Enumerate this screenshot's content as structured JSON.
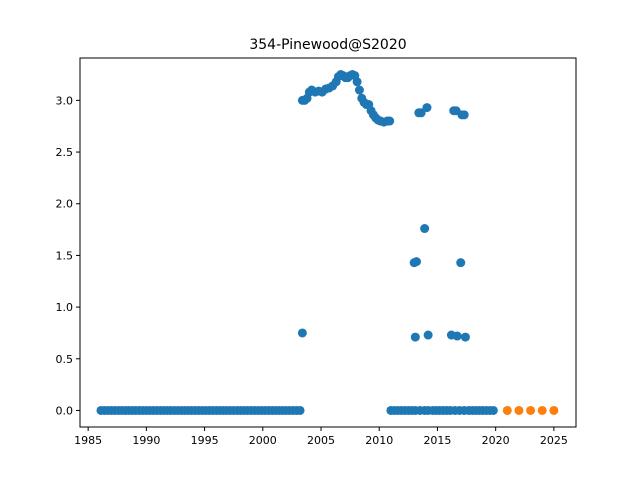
{
  "chart_data": {
    "type": "scatter",
    "title": "354-Pinewood@S2020",
    "xlabel": "",
    "ylabel": "",
    "xlim": [
      1984.3,
      2026.9
    ],
    "ylim": [
      -0.16,
      3.41
    ],
    "xticks": [
      1985,
      1990,
      1995,
      2000,
      2005,
      2010,
      2015,
      2020,
      2025
    ],
    "yticks": [
      0.0,
      0.5,
      1.0,
      1.5,
      2.0,
      2.5,
      3.0
    ],
    "ytick_labels": [
      "0.0",
      "0.5",
      "1.0",
      "1.5",
      "2.0",
      "2.5",
      "3.0"
    ],
    "grid": false,
    "legend": "none",
    "series": [
      {
        "color": "#1f77b4",
        "points": [
          [
            1986.1,
            0
          ],
          [
            1986.4,
            0
          ],
          [
            1986.7,
            0
          ],
          [
            1987.0,
            0
          ],
          [
            1987.3,
            0
          ],
          [
            1987.6,
            0
          ],
          [
            1987.9,
            0
          ],
          [
            1988.2,
            0
          ],
          [
            1988.5,
            0
          ],
          [
            1988.8,
            0
          ],
          [
            1989.1,
            0
          ],
          [
            1989.4,
            0
          ],
          [
            1989.7,
            0
          ],
          [
            1990.0,
            0
          ],
          [
            1990.3,
            0
          ],
          [
            1990.6,
            0
          ],
          [
            1990.9,
            0
          ],
          [
            1991.2,
            0
          ],
          [
            1991.5,
            0
          ],
          [
            1991.8,
            0
          ],
          [
            1992.1,
            0
          ],
          [
            1992.4,
            0
          ],
          [
            1992.7,
            0
          ],
          [
            1993.0,
            0
          ],
          [
            1993.3,
            0
          ],
          [
            1993.6,
            0
          ],
          [
            1993.9,
            0
          ],
          [
            1994.2,
            0
          ],
          [
            1994.5,
            0
          ],
          [
            1994.8,
            0
          ],
          [
            1995.1,
            0
          ],
          [
            1995.4,
            0
          ],
          [
            1995.7,
            0
          ],
          [
            1996.0,
            0
          ],
          [
            1996.3,
            0
          ],
          [
            1996.6,
            0
          ],
          [
            1996.9,
            0
          ],
          [
            1997.2,
            0
          ],
          [
            1997.5,
            0
          ],
          [
            1997.8,
            0
          ],
          [
            1998.1,
            0
          ],
          [
            1998.4,
            0
          ],
          [
            1998.7,
            0
          ],
          [
            1999.0,
            0
          ],
          [
            1999.3,
            0
          ],
          [
            1999.6,
            0
          ],
          [
            1999.9,
            0
          ],
          [
            2000.2,
            0
          ],
          [
            2000.5,
            0
          ],
          [
            2000.8,
            0
          ],
          [
            2001.1,
            0
          ],
          [
            2001.4,
            0
          ],
          [
            2001.7,
            0
          ],
          [
            2002.0,
            0
          ],
          [
            2002.3,
            0
          ],
          [
            2002.6,
            0
          ],
          [
            2002.9,
            0
          ],
          [
            2003.2,
            0
          ],
          [
            2003.4,
            0.75
          ],
          [
            2003.4,
            3.0
          ],
          [
            2003.6,
            3.0
          ],
          [
            2003.8,
            3.02
          ],
          [
            2004.0,
            3.08
          ],
          [
            2004.2,
            3.1
          ],
          [
            2004.5,
            3.08
          ],
          [
            2004.8,
            3.09
          ],
          [
            2005.1,
            3.08
          ],
          [
            2005.4,
            3.11
          ],
          [
            2005.7,
            3.12
          ],
          [
            2006.0,
            3.14
          ],
          [
            2006.3,
            3.18
          ],
          [
            2006.5,
            3.23
          ],
          [
            2006.7,
            3.25
          ],
          [
            2006.9,
            3.24
          ],
          [
            2007.1,
            3.22
          ],
          [
            2007.3,
            3.22
          ],
          [
            2007.5,
            3.24
          ],
          [
            2007.7,
            3.25
          ],
          [
            2007.9,
            3.24
          ],
          [
            2008.1,
            3.18
          ],
          [
            2008.3,
            3.1
          ],
          [
            2008.5,
            3.02
          ],
          [
            2008.7,
            2.98
          ],
          [
            2008.9,
            2.96
          ],
          [
            2009.1,
            2.96
          ],
          [
            2009.3,
            2.9
          ],
          [
            2009.5,
            2.86
          ],
          [
            2009.7,
            2.83
          ],
          [
            2009.9,
            2.81
          ],
          [
            2010.1,
            2.8
          ],
          [
            2010.4,
            2.79
          ],
          [
            2010.7,
            2.8
          ],
          [
            2010.9,
            2.8
          ],
          [
            2011.0,
            0
          ],
          [
            2011.3,
            0
          ],
          [
            2011.6,
            0
          ],
          [
            2011.9,
            0
          ],
          [
            2012.2,
            0
          ],
          [
            2012.5,
            0
          ],
          [
            2012.8,
            0
          ],
          [
            2013.1,
            0
          ],
          [
            2013.5,
            0
          ],
          [
            2013.9,
            0
          ],
          [
            2014.2,
            0
          ],
          [
            2014.6,
            0
          ],
          [
            2014.9,
            0
          ],
          [
            2015.2,
            0
          ],
          [
            2015.5,
            0
          ],
          [
            2015.8,
            0
          ],
          [
            2016.1,
            0
          ],
          [
            2016.5,
            0
          ],
          [
            2016.9,
            0
          ],
          [
            2017.3,
            0
          ],
          [
            2017.7,
            0
          ],
          [
            2018.0,
            0
          ],
          [
            2018.3,
            0
          ],
          [
            2018.6,
            0
          ],
          [
            2018.9,
            0
          ],
          [
            2019.2,
            0
          ],
          [
            2019.5,
            0
          ],
          [
            2019.8,
            0
          ],
          [
            2013.0,
            1.43
          ],
          [
            2013.2,
            1.44
          ],
          [
            2013.1,
            0.71
          ],
          [
            2013.4,
            2.88
          ],
          [
            2013.6,
            2.88
          ],
          [
            2013.9,
            1.76
          ],
          [
            2014.1,
            2.93
          ],
          [
            2014.2,
            0.73
          ],
          [
            2016.2,
            0.73
          ],
          [
            2016.4,
            2.9
          ],
          [
            2016.6,
            2.9
          ],
          [
            2016.7,
            0.72
          ],
          [
            2017.0,
            1.43
          ],
          [
            2017.1,
            2.86
          ],
          [
            2017.3,
            2.86
          ],
          [
            2017.4,
            0.71
          ]
        ]
      },
      {
        "color": "#ff7f0e",
        "points": [
          [
            2021,
            0
          ],
          [
            2022,
            0
          ],
          [
            2023,
            0
          ],
          [
            2024,
            0
          ],
          [
            2025,
            0
          ]
        ]
      }
    ]
  }
}
